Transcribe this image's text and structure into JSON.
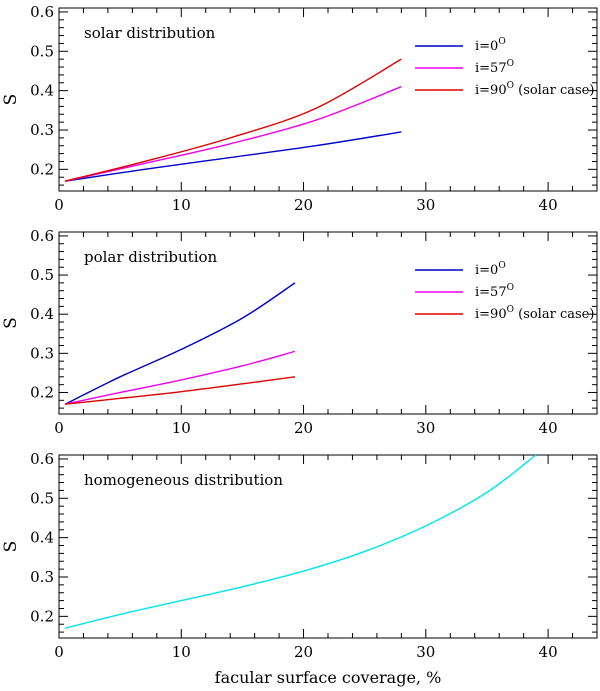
{
  "chart_data": [
    {
      "type": "line",
      "title": "solar distribution",
      "xlabel": "",
      "ylabel": "S",
      "xlim": [
        0,
        44
      ],
      "ylim": [
        0.145,
        0.61
      ],
      "xticks": [
        0,
        10,
        20,
        30,
        40
      ],
      "xtick_labels": [
        "0",
        "10",
        "20",
        "30",
        "40"
      ],
      "yticks": [
        0.2,
        0.3,
        0.4,
        0.5,
        0.6
      ],
      "ytick_labels": [
        "0.2",
        "0.3",
        "0.4",
        "0.5",
        "0.6"
      ],
      "grid": false,
      "legend": "top-right",
      "series": [
        {
          "name": "i=0",
          "sup": "O",
          "name_suffix": "",
          "color": "#0000cc",
          "x": [
            0.5,
            7,
            14,
            21,
            28
          ],
          "y": [
            0.17,
            0.2,
            0.23,
            0.26,
            0.295
          ]
        },
        {
          "name": "i=57",
          "sup": "O",
          "name_suffix": "",
          "color": "#ee00ee",
          "x": [
            0.5,
            7,
            14,
            21,
            28
          ],
          "y": [
            0.17,
            0.215,
            0.265,
            0.325,
            0.41
          ]
        },
        {
          "name": "i=90",
          "sup": "O",
          "name_suffix": " (solar case)",
          "color": "#dd0000",
          "x": [
            0.5,
            7,
            14,
            21,
            28
          ],
          "y": [
            0.17,
            0.22,
            0.28,
            0.355,
            0.48
          ]
        }
      ]
    },
    {
      "type": "line",
      "title": "polar distribution",
      "xlabel": "",
      "ylabel": "S",
      "xlim": [
        0,
        44
      ],
      "ylim": [
        0.145,
        0.61
      ],
      "xticks": [
        0,
        10,
        20,
        30,
        40
      ],
      "xtick_labels": [
        "0",
        "10",
        "20",
        "30",
        "40"
      ],
      "yticks": [
        0.2,
        0.3,
        0.4,
        0.5,
        0.6
      ],
      "ytick_labels": [
        "0.2",
        "0.3",
        "0.4",
        "0.5",
        "0.6"
      ],
      "grid": false,
      "legend": "top-right",
      "series": [
        {
          "name": "i=0",
          "sup": "O",
          "name_suffix": "",
          "color": "#0000cc",
          "x": [
            0.5,
            5,
            10,
            15,
            19.3
          ],
          "y": [
            0.17,
            0.24,
            0.31,
            0.39,
            0.48
          ]
        },
        {
          "name": "i=57",
          "sup": "O",
          "name_suffix": "",
          "color": "#ee00ee",
          "x": [
            0.5,
            5,
            10,
            15,
            19.3
          ],
          "y": [
            0.17,
            0.2,
            0.232,
            0.268,
            0.305
          ]
        },
        {
          "name": "i=90",
          "sup": "O",
          "name_suffix": " (solar case)",
          "color": "#dd0000",
          "x": [
            0.5,
            5,
            10,
            15,
            19.3
          ],
          "y": [
            0.17,
            0.185,
            0.202,
            0.222,
            0.24
          ]
        }
      ]
    },
    {
      "type": "line",
      "title": "homogeneous distribution",
      "xlabel": "facular surface coverage, %",
      "ylabel": "S",
      "xlim": [
        0,
        44
      ],
      "ylim": [
        0.145,
        0.61
      ],
      "xticks": [
        0,
        10,
        20,
        30,
        40
      ],
      "xtick_labels": [
        "0",
        "10",
        "20",
        "30",
        "40"
      ],
      "yticks": [
        0.2,
        0.3,
        0.4,
        0.5,
        0.6
      ],
      "ytick_labels": [
        "0.2",
        "0.3",
        "0.4",
        "0.5",
        "0.6"
      ],
      "grid": false,
      "legend": "none",
      "series": [
        {
          "color": "#00e5ee",
          "x": [
            0.5,
            5,
            10,
            15,
            20,
            25,
            30,
            35,
            39
          ],
          "y": [
            0.17,
            0.205,
            0.24,
            0.275,
            0.315,
            0.365,
            0.43,
            0.515,
            0.61
          ]
        }
      ]
    }
  ]
}
